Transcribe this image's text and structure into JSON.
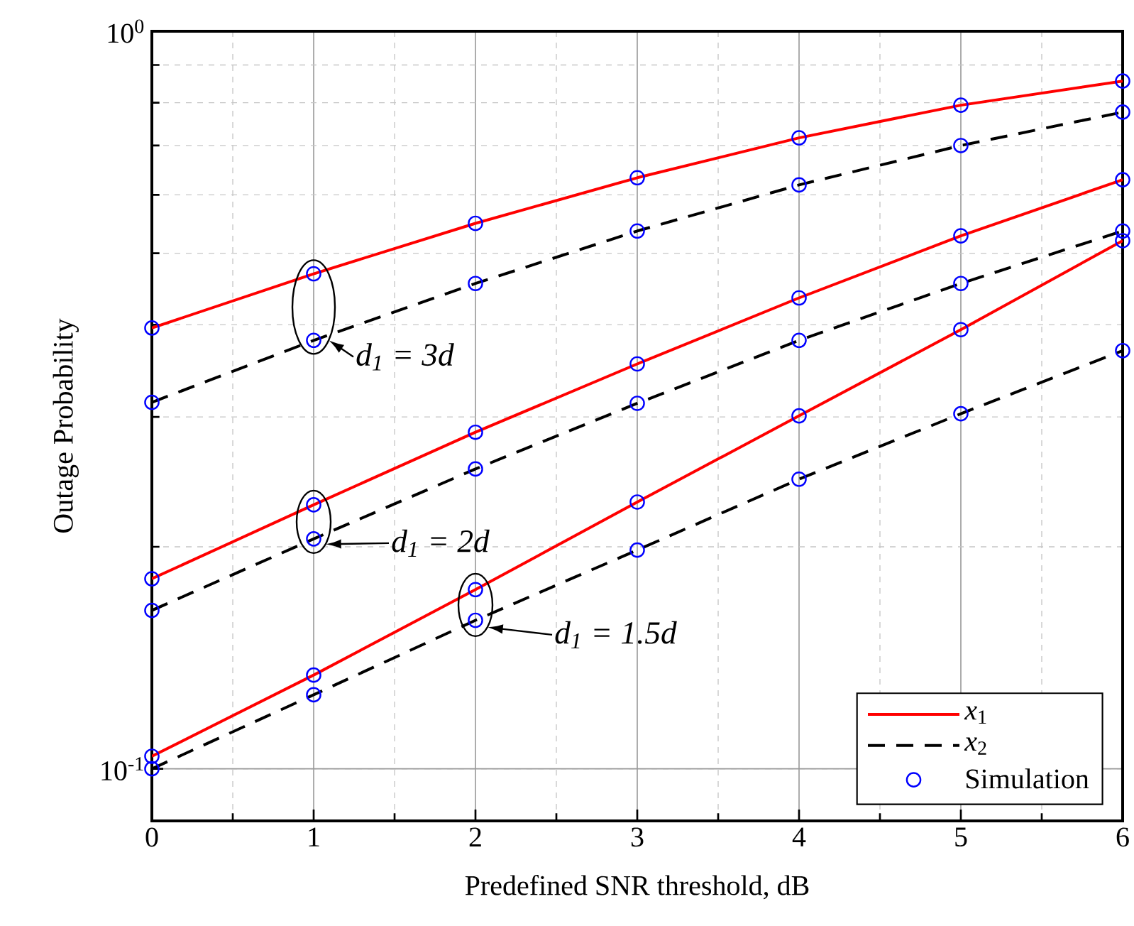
{
  "chart_data": {
    "type": "line",
    "xlabel": "Predefined SNR threshold, dB",
    "ylabel": "Outage Probability",
    "x": [
      0,
      1,
      2,
      3,
      4,
      5,
      6
    ],
    "xlim": [
      0,
      6
    ],
    "xticks": [
      0,
      1,
      2,
      3,
      4,
      5,
      6
    ],
    "ylim": [
      0.085,
      1
    ],
    "yticks": [
      {
        "value": 0.1,
        "label": "10$^{-1}$"
      },
      {
        "value": 1,
        "label": "10$^{0}$"
      }
    ],
    "log": "y",
    "grid": true,
    "legend": "bottom right",
    "series": [
      {
        "name": "*x*$_{1}$",
        "line_style": "solid",
        "marker": "none",
        "color": "#ff0000",
        "values": [
          0.396,
          0.469,
          0.549,
          0.633,
          0.717,
          0.794,
          0.856
        ]
      },
      {
        "name": "*x*$_{2}$",
        "line_style": "dashed",
        "marker": "none",
        "color": "#000000",
        "values": [
          0.314,
          0.381,
          0.455,
          0.536,
          0.619,
          0.7,
          0.777
        ]
      },
      {
        "line_style": "solid",
        "marker": "none",
        "color": "#ff0000",
        "values": [
          0.181,
          0.228,
          0.286,
          0.354,
          0.435,
          0.528,
          0.629
        ]
      },
      {
        "line_style": "dashed",
        "marker": "none",
        "color": "#000000",
        "values": [
          0.164,
          0.205,
          0.255,
          0.313,
          0.381,
          0.455,
          0.536
        ]
      },
      {
        "line_style": "solid",
        "marker": "none",
        "color": "#ff0000",
        "values": [
          0.104,
          0.134,
          0.175,
          0.23,
          0.301,
          0.394,
          0.52
        ]
      },
      {
        "line_style": "dashed",
        "marker": "none",
        "color": "#000000",
        "values": [
          0.1,
          0.126,
          0.159,
          0.198,
          0.247,
          0.303,
          0.369
        ]
      },
      {
        "name": "Simulation",
        "type": "scatter",
        "marker": "circle",
        "color": "#0000ff",
        "x": [
          0,
          1,
          2,
          3,
          4,
          5,
          6,
          0,
          1,
          2,
          3,
          4,
          5,
          6,
          0,
          1,
          2,
          3,
          4,
          5,
          6,
          0,
          1,
          2,
          3,
          4,
          5,
          6,
          0,
          1,
          2,
          3,
          4,
          5,
          6,
          0,
          1,
          2,
          3,
          4,
          5,
          6
        ],
        "values": [
          0.396,
          0.469,
          0.549,
          0.633,
          0.717,
          0.794,
          0.856,
          0.314,
          0.381,
          0.455,
          0.536,
          0.619,
          0.7,
          0.777,
          0.181,
          0.228,
          0.286,
          0.354,
          0.435,
          0.528,
          0.629,
          0.164,
          0.205,
          0.255,
          0.313,
          0.381,
          0.455,
          0.536,
          0.104,
          0.134,
          0.175,
          0.23,
          0.301,
          0.394,
          0.52,
          0.1,
          0.126,
          0.159,
          0.198,
          0.247,
          0.303,
          0.369
        ]
      }
    ],
    "annotations": [
      "d$_{1}$ = 3d",
      "d$_{1}$ = 2d",
      "d$_{1}$ = 1.5d"
    ]
  }
}
